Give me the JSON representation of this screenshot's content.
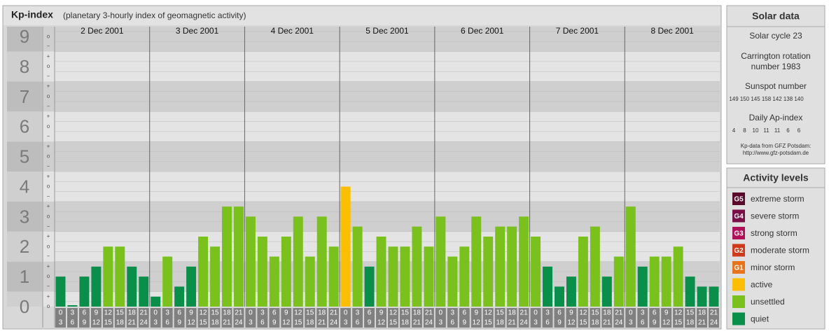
{
  "chart_data": {
    "type": "bar",
    "title": "Kp-index",
    "subtitle": "(planetary 3-hourly index of geomagnetic activity)",
    "days": [
      "2 Dec 2001",
      "3 Dec 2001",
      "4 Dec 2001",
      "5 Dec 2001",
      "6 Dec 2001",
      "7 Dec 2001",
      "8 Dec 2001"
    ],
    "hours": [
      {
        "from": "0",
        "to": "3"
      },
      {
        "from": "3",
        "to": "6"
      },
      {
        "from": "6",
        "to": "9"
      },
      {
        "from": "9",
        "to": "12"
      },
      {
        "from": "12",
        "to": "15"
      },
      {
        "from": "15",
        "to": "18"
      },
      {
        "from": "18",
        "to": "21"
      },
      {
        "from": "21",
        "to": "24"
      }
    ],
    "values": [
      1,
      0,
      1,
      1.333,
      2,
      2,
      1.333,
      1,
      0.333,
      1.667,
      0.667,
      1.333,
      2.333,
      2,
      3.333,
      3.333,
      3,
      2.333,
      1.667,
      2.333,
      3,
      1.667,
      3,
      2,
      4,
      2.667,
      1.333,
      2.333,
      2,
      2,
      2.667,
      2,
      3,
      1.667,
      2,
      3,
      2.333,
      2.667,
      2.667,
      3,
      2.333,
      1.333,
      0.667,
      1,
      2.333,
      2.667,
      1,
      1.667,
      3.333,
      1.333,
      1.667,
      1.667,
      2,
      1,
      0.667,
      0.667
    ],
    "colors": [
      "#0a8f4a",
      "#0a8f4a",
      "#0a8f4a",
      "#0a8f4a",
      "#7bc11e",
      "#7bc11e",
      "#0a8f4a",
      "#0a8f4a",
      "#0a8f4a",
      "#7bc11e",
      "#0a8f4a",
      "#0a8f4a",
      "#7bc11e",
      "#7bc11e",
      "#7bc11e",
      "#7bc11e",
      "#7bc11e",
      "#7bc11e",
      "#7bc11e",
      "#7bc11e",
      "#7bc11e",
      "#7bc11e",
      "#7bc11e",
      "#7bc11e",
      "#fbbf00",
      "#7bc11e",
      "#0a8f4a",
      "#7bc11e",
      "#7bc11e",
      "#7bc11e",
      "#7bc11e",
      "#7bc11e",
      "#7bc11e",
      "#7bc11e",
      "#7bc11e",
      "#7bc11e",
      "#7bc11e",
      "#7bc11e",
      "#7bc11e",
      "#7bc11e",
      "#7bc11e",
      "#0a8f4a",
      "#0a8f4a",
      "#0a8f4a",
      "#7bc11e",
      "#7bc11e",
      "#0a8f4a",
      "#7bc11e",
      "#7bc11e",
      "#0a8f4a",
      "#7bc11e",
      "#7bc11e",
      "#7bc11e",
      "#0a8f4a",
      "#0a8f4a",
      "#0a8f4a"
    ],
    "ylim": [
      0,
      9.33
    ],
    "yticks": [
      0,
      1,
      2,
      3,
      4,
      5,
      6,
      7,
      8,
      9
    ],
    "ysubticks": [
      {
        "value": 0,
        "label": "o"
      },
      {
        "value": 0.333,
        "label": "+"
      },
      {
        "value": 0.667,
        "label": "−"
      },
      {
        "value": 1,
        "label": "o"
      },
      {
        "value": 1.333,
        "label": "+"
      },
      {
        "value": 1.667,
        "label": "−"
      },
      {
        "value": 2,
        "label": "o"
      },
      {
        "value": 2.333,
        "label": "+"
      },
      {
        "value": 2.667,
        "label": "−"
      },
      {
        "value": 3,
        "label": "o"
      },
      {
        "value": 3.333,
        "label": "+"
      },
      {
        "value": 3.667,
        "label": "−"
      },
      {
        "value": 4,
        "label": "o"
      },
      {
        "value": 4.333,
        "label": "+"
      },
      {
        "value": 4.667,
        "label": "−"
      },
      {
        "value": 5,
        "label": "o"
      },
      {
        "value": 5.333,
        "label": "+"
      },
      {
        "value": 5.667,
        "label": "−"
      },
      {
        "value": 6,
        "label": "o"
      },
      {
        "value": 6.333,
        "label": "+"
      },
      {
        "value": 6.667,
        "label": "−"
      },
      {
        "value": 7,
        "label": "o"
      },
      {
        "value": 7.333,
        "label": "+"
      },
      {
        "value": 7.667,
        "label": "−"
      },
      {
        "value": 8,
        "label": "o"
      },
      {
        "value": 8.333,
        "label": "+"
      },
      {
        "value": 8.667,
        "label": "−"
      },
      {
        "value": 9,
        "label": "o"
      }
    ]
  },
  "solar_data": {
    "title": "Solar data",
    "cycle": "Solar cycle 23",
    "carrington": [
      "Carrington rotation",
      "number 1983"
    ],
    "sunspot_title": "Sunspot number",
    "sunspot": [
      149,
      150,
      145,
      158,
      142,
      138,
      140
    ],
    "ap_title": "Daily Ap-index",
    "ap": [
      4,
      8,
      10,
      11,
      11,
      6,
      6
    ],
    "source": [
      "Kp-data from GFZ Potsdam:",
      "http://www.gfz-potsdam.de"
    ]
  },
  "activity_levels": {
    "title": "Activity levels",
    "items": [
      {
        "code": "G5",
        "name": "extreme storm",
        "color": "#5a0a2a"
      },
      {
        "code": "G4",
        "name": "severe storm",
        "color": "#7a0f4a"
      },
      {
        "code": "G3",
        "name": "strong storm",
        "color": "#b0105a"
      },
      {
        "code": "G2",
        "name": "moderate storm",
        "color": "#d03a1a"
      },
      {
        "code": "G1",
        "name": "minor storm",
        "color": "#e8741a"
      },
      {
        "code": null,
        "name": "active",
        "color": "#fbbf00"
      },
      {
        "code": null,
        "name": "unsettled",
        "color": "#7bc11e"
      },
      {
        "code": null,
        "name": "quiet",
        "color": "#0a8f4a"
      }
    ]
  }
}
